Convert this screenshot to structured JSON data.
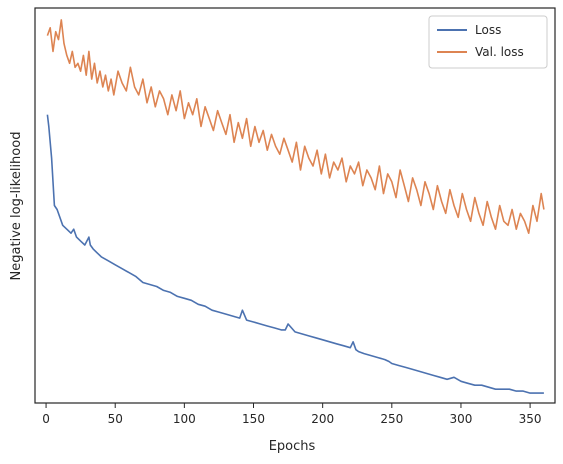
{
  "chart_data": {
    "type": "line",
    "xlabel": "Epochs",
    "ylabel": "Negative log-likelihood",
    "xlim": [
      -8,
      368
    ],
    "xticks": [
      0,
      50,
      100,
      150,
      200,
      250,
      300,
      350
    ],
    "ylim": [
      0,
      100
    ],
    "yticks_visible": false,
    "grid": false,
    "legend_position": "top-right",
    "series": [
      {
        "name": "Loss",
        "color": "#4c72b0",
        "x": [
          1,
          2,
          4,
          6,
          8,
          10,
          12,
          15,
          18,
          20,
          22,
          25,
          28,
          31,
          32,
          34,
          37,
          40,
          45,
          50,
          55,
          60,
          65,
          70,
          75,
          80,
          85,
          90,
          95,
          100,
          105,
          110,
          115,
          120,
          125,
          130,
          135,
          140,
          142,
          145,
          150,
          155,
          160,
          165,
          170,
          173,
          175,
          180,
          185,
          190,
          195,
          200,
          205,
          210,
          215,
          220,
          222,
          224,
          226,
          230,
          235,
          240,
          245,
          248,
          250,
          255,
          260,
          265,
          270,
          275,
          280,
          285,
          290,
          295,
          300,
          305,
          310,
          315,
          320,
          325,
          330,
          335,
          340,
          345,
          350,
          355,
          360
        ],
        "values": [
          73,
          70,
          62,
          50,
          49,
          47,
          45,
          44,
          43,
          44,
          42,
          41,
          40,
          42,
          40,
          39,
          38,
          37,
          36,
          35,
          34,
          33,
          32,
          30.5,
          30,
          29.5,
          28.5,
          28,
          27,
          26.5,
          26,
          25,
          24.5,
          23.5,
          23,
          22.5,
          22,
          21.5,
          23.5,
          21,
          20.5,
          20,
          19.5,
          19,
          18.5,
          18.5,
          20,
          18,
          17.5,
          17,
          16.5,
          16,
          15.5,
          15,
          14.5,
          14,
          15.5,
          13.5,
          13,
          12.5,
          12,
          11.5,
          11,
          10.5,
          10,
          9.5,
          9,
          8.5,
          8,
          7.5,
          7,
          6.5,
          6,
          6.5,
          5.5,
          5,
          4.5,
          4.5,
          4,
          3.5,
          3.5,
          3.5,
          3,
          3,
          2.5,
          2.5,
          2.5
        ]
      },
      {
        "name": "Val. loss",
        "color": "#dd8452",
        "x": [
          1,
          3,
          5,
          7,
          9,
          11,
          13,
          15,
          17,
          19,
          21,
          23,
          25,
          27,
          29,
          31,
          33,
          35,
          37,
          39,
          41,
          43,
          45,
          47,
          49,
          52,
          55,
          58,
          61,
          64,
          67,
          70,
          73,
          76,
          79,
          82,
          85,
          88,
          91,
          94,
          97,
          100,
          103,
          106,
          109,
          112,
          115,
          118,
          121,
          124,
          127,
          130,
          133,
          136,
          139,
          142,
          145,
          148,
          151,
          154,
          157,
          160,
          163,
          166,
          169,
          172,
          175,
          178,
          181,
          184,
          187,
          190,
          193,
          196,
          199,
          202,
          205,
          208,
          211,
          214,
          217,
          220,
          223,
          226,
          229,
          232,
          235,
          238,
          241,
          244,
          247,
          250,
          253,
          256,
          259,
          262,
          265,
          268,
          271,
          274,
          277,
          280,
          283,
          286,
          289,
          292,
          295,
          298,
          301,
          304,
          307,
          310,
          313,
          316,
          319,
          322,
          325,
          328,
          331,
          334,
          337,
          340,
          343,
          346,
          349,
          352,
          355,
          358,
          360
        ],
        "values": [
          93,
          95,
          89,
          94,
          92,
          97,
          91,
          88,
          86,
          89,
          85,
          86,
          84,
          88,
          83,
          89,
          82,
          86,
          81,
          84,
          80,
          83,
          79,
          82,
          78,
          84,
          81,
          79,
          85,
          80,
          78,
          82,
          76,
          80,
          75,
          79,
          77,
          73,
          78,
          74,
          79,
          72,
          76,
          73,
          77,
          70,
          75,
          72,
          69,
          74,
          71,
          68,
          73,
          66,
          71,
          67,
          72,
          65,
          70,
          66,
          69,
          64,
          68,
          65,
          63,
          67,
          64,
          61,
          66,
          59,
          65,
          62,
          60,
          64,
          58,
          63,
          57,
          61,
          59,
          62,
          56,
          60,
          58,
          61,
          55,
          59,
          57,
          54,
          60,
          53,
          58,
          56,
          52,
          59,
          55,
          51,
          57,
          54,
          50,
          56,
          53,
          49,
          55,
          51,
          48,
          54,
          50,
          47,
          53,
          49,
          46,
          52,
          48,
          45,
          51,
          47,
          44,
          50,
          46,
          45,
          49,
          44,
          48,
          46,
          43,
          50,
          46,
          53,
          49
        ]
      }
    ]
  }
}
